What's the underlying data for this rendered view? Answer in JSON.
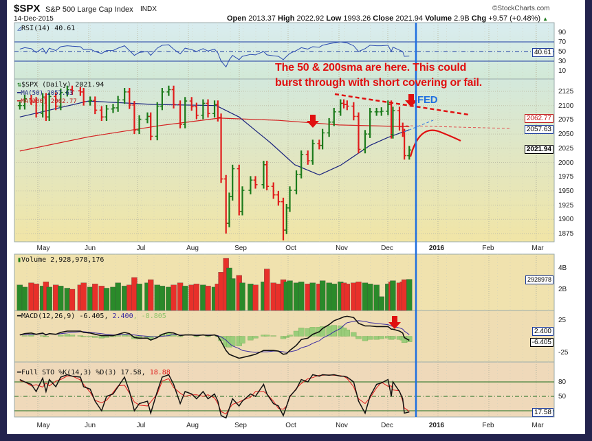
{
  "header": {
    "symbol": "$SPX",
    "name": "S&P 500 Large Cap Index",
    "exchange": "INDX",
    "date": "14-Dec-2015",
    "watermark": "©StockCharts.com",
    "open_label": "Open",
    "open": "2013.37",
    "high_label": "High",
    "high": "2022.92",
    "low_label": "Low",
    "low": "1993.26",
    "close_label": "Close",
    "close": "2021.94",
    "volume_label": "Volume",
    "volume": "2.9B",
    "chg_label": "Chg",
    "chg": "+9.57 (+0.48%)"
  },
  "legends": {
    "rsi": "RSI(14) 40.61",
    "price": "$SPX (Daily) 2021.94",
    "ma50": "MA(50) 2057.63",
    "ma200": "MA(200) 2062.77",
    "volume": "Volume 2,928,978,176",
    "macd_main": "MACD(12,26,9) -6.405,",
    "macd_signal": "2.400",
    "macd_hist": ", -8.805",
    "sto_main": "Full STO %K(14,3) %D(3) 17.58,",
    "sto_d": "18.88"
  },
  "axes": {
    "rsi_ticks": [
      "90",
      "70",
      "50",
      "30",
      "10"
    ],
    "price_ticks": [
      "2125",
      "2100",
      "2075",
      "2050",
      "2025",
      "2000",
      "1975",
      "1950",
      "1925",
      "1900",
      "1875"
    ],
    "volume_ticks": [
      "4B",
      "2B"
    ],
    "macd_ticks": [
      "25",
      "-25"
    ],
    "sto_ticks": [
      "80",
      "50"
    ],
    "months": [
      "May",
      "Jun",
      "Jul",
      "Aug",
      "Sep",
      "Oct",
      "Nov",
      "Dec",
      "2016",
      "Feb",
      "Mar"
    ]
  },
  "tags": {
    "rsi": "40.61",
    "ma50": "2057.63",
    "ma200": "2062.77",
    "close": "2021.94",
    "volume": "2928978",
    "macd_signal": "2.400",
    "macd": "-6.405",
    "sto": "17.58"
  },
  "annotations": {
    "note_line1": "The 50 & 200sma are here.  This could",
    "note_line2": "burst through with short covering or fail.",
    "fed": "FED"
  },
  "colors": {
    "up": "#1a7a1a",
    "down": "#e01a1a",
    "ma50": "#1a237e",
    "ma200": "#d42020",
    "fed_line": "#1f6fe0",
    "note": "#e01010"
  },
  "chart_data": {
    "type": "ohlc",
    "dates": [
      "2015-04-20",
      "2015-04-23",
      "2015-04-27",
      "2015-04-30",
      "2015-05-04",
      "2015-05-06",
      "2015-05-08",
      "2015-05-12",
      "2015-05-15",
      "2015-05-19",
      "2015-05-22",
      "2015-05-27",
      "2015-05-29",
      "2015-06-02",
      "2015-06-05",
      "2015-06-09",
      "2015-06-12",
      "2015-06-16",
      "2015-06-19",
      "2015-06-23",
      "2015-06-26",
      "2015-06-29",
      "2015-07-02",
      "2015-07-07",
      "2015-07-09",
      "2015-07-13",
      "2015-07-16",
      "2015-07-20",
      "2015-07-23",
      "2015-07-27",
      "2015-07-30",
      "2015-08-03",
      "2015-08-06",
      "2015-08-10",
      "2015-08-13",
      "2015-08-17",
      "2015-08-19",
      "2015-08-21",
      "2015-08-24",
      "2015-08-26",
      "2015-08-28",
      "2015-09-01",
      "2015-09-03",
      "2015-09-08",
      "2015-09-11",
      "2015-09-16",
      "2015-09-18",
      "2015-09-22",
      "2015-09-25",
      "2015-09-28",
      "2015-09-30",
      "2015-10-02",
      "2015-10-06",
      "2015-10-09",
      "2015-10-13",
      "2015-10-16",
      "2015-10-20",
      "2015-10-22",
      "2015-10-26",
      "2015-10-29",
      "2015-11-02",
      "2015-11-04",
      "2015-11-06",
      "2015-11-10",
      "2015-11-13",
      "2015-11-17",
      "2015-11-20",
      "2015-11-24",
      "2015-11-27",
      "2015-12-01",
      "2015-12-03",
      "2015-12-04",
      "2015-12-08",
      "2015-12-10",
      "2015-12-11",
      "2015-12-14"
    ],
    "close": [
      2100,
      2112,
      2108,
      2086,
      2115,
      2080,
      2116,
      2099,
      2123,
      2128,
      2126,
      2124,
      2107,
      2109,
      2092,
      2080,
      2094,
      2096,
      2110,
      2124,
      2101,
      2057,
      2076,
      2081,
      2046,
      2099,
      2124,
      2128,
      2102,
      2067,
      2108,
      2098,
      2083,
      2104,
      2086,
      2102,
      2079,
      1971,
      1893,
      1940,
      1989,
      1914,
      1951,
      1969,
      1961,
      1996,
      1958,
      1943,
      1931,
      1881,
      1920,
      1951,
      1979,
      2014,
      2003,
      2033,
      2030,
      2052,
      2071,
      2089,
      2104,
      2102,
      2099,
      2081,
      2023,
      2050,
      2089,
      2089,
      2090,
      2102,
      2049,
      2091,
      2063,
      2052,
      2012,
      2021.94
    ],
    "volume_billions": [
      2.4,
      2.2,
      2.6,
      2.5,
      2.3,
      2.7,
      2.2,
      2.4,
      2.3,
      2.1,
      2.0,
      2.4,
      2.6,
      2.2,
      2.5,
      2.3,
      2.1,
      2.2,
      2.6,
      2.3,
      2.4,
      3.1,
      2.5,
      2.6,
      2.9,
      2.4,
      2.3,
      2.2,
      2.4,
      2.6,
      2.3,
      2.4,
      2.5,
      2.4,
      2.3,
      2.2,
      2.5,
      3.6,
      4.9,
      4.0,
      3.0,
      3.3,
      2.6,
      2.5,
      2.4,
      2.7,
      3.9,
      2.6,
      2.5,
      2.9,
      2.7,
      2.8,
      2.6,
      2.7,
      2.5,
      2.6,
      2.5,
      2.8,
      2.6,
      2.5,
      2.7,
      2.6,
      2.5,
      2.6,
      2.7,
      2.6,
      2.5,
      2.4,
      1.3,
      2.5,
      2.7,
      2.8,
      2.6,
      2.7,
      2.9,
      2.93
    ],
    "ma50": [
      [
        "2015-04-20",
        2080
      ],
      [
        "2015-06-01",
        2108
      ],
      [
        "2015-07-10",
        2102
      ],
      [
        "2015-08-18",
        2100
      ],
      [
        "2015-09-01",
        2080
      ],
      [
        "2015-09-20",
        2035
      ],
      [
        "2015-10-05",
        1996
      ],
      [
        "2015-10-20",
        1978
      ],
      [
        "2015-11-02",
        1995
      ],
      [
        "2015-11-20",
        2030
      ],
      [
        "2015-12-01",
        2044
      ],
      [
        "2015-12-14",
        2057.63
      ]
    ],
    "ma200": [
      [
        "2015-04-20",
        2020
      ],
      [
        "2015-06-01",
        2045
      ],
      [
        "2015-07-15",
        2065
      ],
      [
        "2015-08-20",
        2078
      ],
      [
        "2015-09-25",
        2074
      ],
      [
        "2015-11-01",
        2066
      ],
      [
        "2015-12-14",
        2062.77
      ]
    ],
    "rsi": [
      55,
      58,
      56,
      48,
      57,
      46,
      57,
      52,
      60,
      62,
      61,
      60,
      54,
      55,
      50,
      46,
      52,
      52,
      57,
      62,
      52,
      42,
      48,
      50,
      42,
      57,
      63,
      64,
      55,
      45,
      57,
      54,
      50,
      56,
      51,
      55,
      47,
      30,
      18,
      33,
      42,
      33,
      40,
      44,
      43,
      50,
      43,
      41,
      40,
      33,
      40,
      46,
      52,
      58,
      55,
      60,
      59,
      63,
      66,
      68,
      70,
      69,
      68,
      62,
      50,
      56,
      63,
      62,
      62,
      63,
      50,
      59,
      53,
      50,
      40,
      40.61
    ],
    "rsi_bands": [
      70,
      50,
      30
    ],
    "macd": [
      2,
      4,
      5,
      3,
      5,
      2,
      4,
      3,
      6,
      8,
      8,
      8,
      6,
      5,
      3,
      1,
      1,
      1,
      3,
      6,
      4,
      -2,
      -3,
      -3,
      -6,
      -2,
      3,
      6,
      5,
      1,
      2,
      2,
      1,
      2,
      1,
      2,
      0,
      -8,
      -22,
      -28,
      -30,
      -34,
      -33,
      -30,
      -28,
      -22,
      -22,
      -22,
      -23,
      -28,
      -27,
      -22,
      -14,
      -5,
      -3,
      3,
      7,
      12,
      18,
      24,
      28,
      30,
      31,
      29,
      20,
      16,
      16,
      15,
      15,
      15,
      11,
      11,
      8,
      5,
      -2,
      -6.405
    ],
    "macd_signal": [
      2,
      3,
      3,
      3,
      4,
      3,
      4,
      3,
      4,
      5,
      6,
      7,
      7,
      6,
      5,
      4,
      3,
      2,
      2,
      3,
      3,
      2,
      1,
      0,
      -1,
      -1,
      0,
      1,
      3,
      2,
      2,
      2,
      2,
      2,
      2,
      2,
      1,
      -1,
      -6,
      -11,
      -15,
      -19,
      -22,
      -24,
      -25,
      -24,
      -24,
      -23,
      -23,
      -24,
      -25,
      -24,
      -22,
      -18,
      -15,
      -11,
      -7,
      -3,
      2,
      7,
      12,
      17,
      21,
      23,
      24,
      23,
      21,
      20,
      19,
      18,
      16,
      15,
      13,
      11,
      8,
      2.4
    ],
    "sto_k": [
      85,
      80,
      75,
      60,
      88,
      60,
      85,
      70,
      90,
      95,
      92,
      90,
      70,
      65,
      40,
      20,
      50,
      55,
      70,
      90,
      60,
      20,
      35,
      40,
      15,
      60,
      90,
      95,
      75,
      35,
      60,
      55,
      45,
      60,
      45,
      55,
      40,
      10,
      5,
      25,
      45,
      30,
      40,
      55,
      50,
      75,
      55,
      35,
      30,
      10,
      30,
      50,
      65,
      85,
      80,
      95,
      92,
      95,
      94,
      95,
      92,
      92,
      90,
      80,
      40,
      15,
      50,
      75,
      78,
      85,
      50,
      80,
      60,
      45,
      15,
      17.58
    ],
    "sto_bands": [
      80,
      50,
      20
    ],
    "price_range": [
      1860,
      2135
    ],
    "rsi_range": [
      0,
      100
    ],
    "macd_range": [
      -40,
      35
    ],
    "sto_range": [
      0,
      100
    ],
    "grid": true
  }
}
